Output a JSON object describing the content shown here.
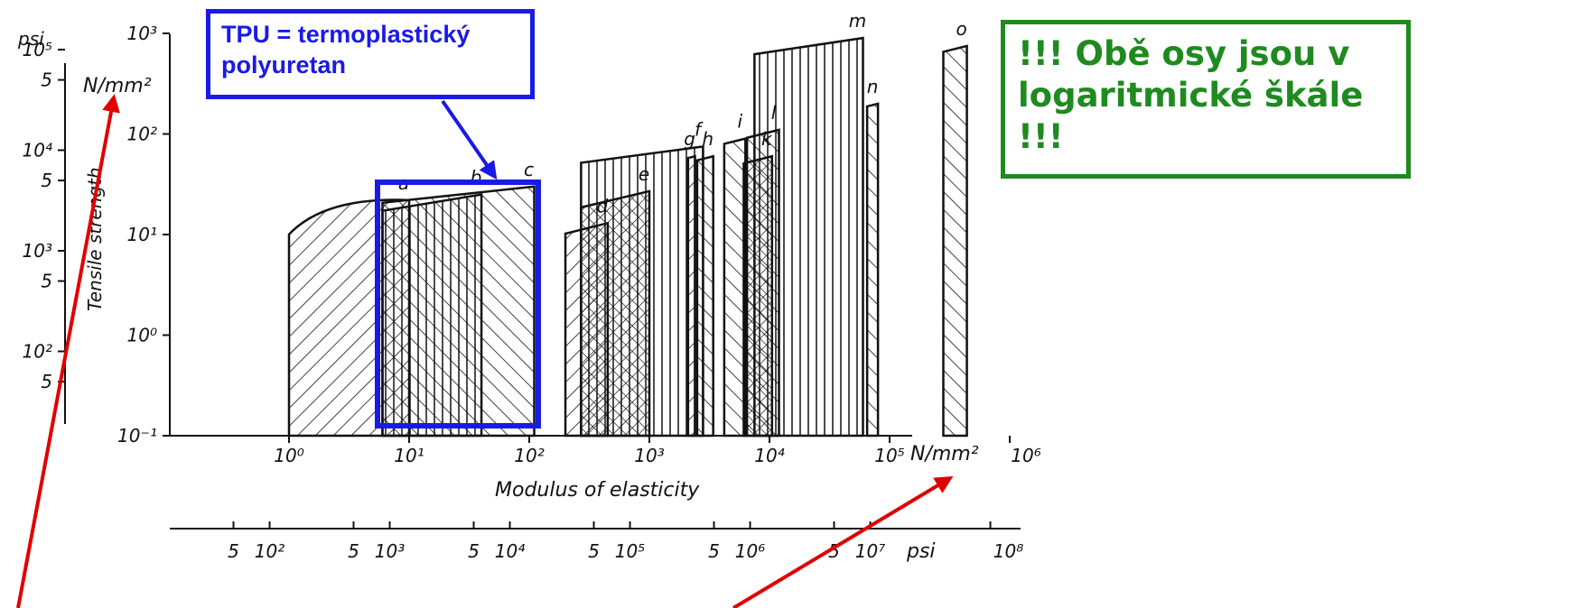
{
  "chart_data": {
    "type": "area",
    "title": "",
    "xlabel": "Modulus of elasticity",
    "ylabel": "Tensile strength",
    "x_scale": "log",
    "y_scale": "log",
    "xlim": [
      1,
      1000000
    ],
    "ylim": [
      0.1,
      1000
    ],
    "x_unit": "N/mm²",
    "y_unit_left": "N/mm²",
    "y_unit_outer": "psi",
    "x_unit_lower": "psi",
    "x_tick_labels": [
      "10⁰",
      "10¹",
      "10²",
      "10³",
      "10⁴",
      "10⁵",
      "10⁶"
    ],
    "y_tick_labels": [
      "10⁻¹",
      "10⁰",
      "10¹",
      "10²",
      "10³"
    ],
    "psi_x_tick_labels": [
      "5",
      "10²",
      "5",
      "10³",
      "5",
      "10⁴",
      "5",
      "10⁵",
      "5",
      "10⁶",
      "5",
      "10⁷",
      "10⁸"
    ],
    "psi_y_tick_labels": [
      "5",
      "10²",
      "5",
      "10³",
      "5",
      "10⁴",
      "5",
      "10⁵"
    ],
    "grid": false,
    "series": [
      {
        "name": "a",
        "x_range": [
          1,
          10
        ],
        "y_range": [
          0.1,
          22
        ]
      },
      {
        "name": "b",
        "x_range": [
          6,
          40
        ],
        "y_range": [
          0.1,
          25
        ]
      },
      {
        "name": "c",
        "x_range": [
          6,
          110
        ],
        "y_range": [
          0.1,
          30
        ]
      },
      {
        "name": "d",
        "x_range": [
          200,
          450
        ],
        "y_range": [
          0.1,
          13
        ]
      },
      {
        "name": "e",
        "x_range": [
          270,
          1000
        ],
        "y_range": [
          0.1,
          27
        ]
      },
      {
        "name": "f",
        "x_range": [
          270,
          2800
        ],
        "y_range": [
          0.1,
          75
        ]
      },
      {
        "name": "g",
        "x_range": [
          2100,
          2400
        ],
        "y_range": [
          0.1,
          60
        ]
      },
      {
        "name": "h",
        "x_range": [
          2500,
          3400
        ],
        "y_range": [
          0.1,
          60
        ]
      },
      {
        "name": "i",
        "x_range": [
          4200,
          6300
        ],
        "y_range": [
          0.1,
          90
        ]
      },
      {
        "name": "k",
        "x_range": [
          6100,
          10500
        ],
        "y_range": [
          0.1,
          60
        ]
      },
      {
        "name": "l",
        "x_range": [
          6500,
          12000
        ],
        "y_range": [
          0.1,
          110
        ]
      },
      {
        "name": "m",
        "x_range": [
          7500,
          60000
        ],
        "y_range": [
          0.1,
          900
        ]
      },
      {
        "name": "n",
        "x_range": [
          65000,
          80000
        ],
        "y_range": [
          0.1,
          200
        ]
      },
      {
        "name": "o",
        "x_range": [
          280000,
          440000
        ],
        "y_range": [
          0.1,
          750
        ]
      }
    ]
  },
  "annotations": {
    "tpu_box_text": "TPU = termoplastický polyuretan",
    "note_text": "!!! Obě osy jsou v logaritmické škále !!!",
    "arrow_color_blue": "#1a1ae6",
    "arrow_color_red": "#e00000",
    "note_color": "#1f8a1f"
  }
}
